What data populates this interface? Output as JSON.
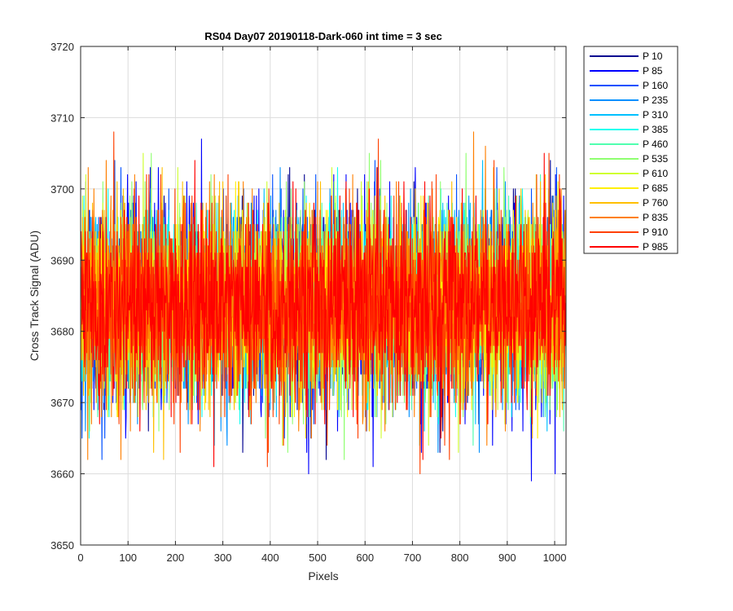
{
  "chart_data": {
    "type": "line",
    "title": "RS04 Day07 20190118-Dark-060 int time = 3 sec",
    "xlabel": "Pixels",
    "ylabel": "Cross Track Signal (ADU)",
    "xlim": [
      0,
      1024
    ],
    "ylim": [
      3650,
      3720
    ],
    "xticks": [
      0,
      100,
      200,
      300,
      400,
      500,
      600,
      700,
      800,
      900,
      1000
    ],
    "yticks": [
      3650,
      3660,
      3670,
      3680,
      3690,
      3700,
      3710,
      3720
    ],
    "grid": true,
    "legend_position": "outside-right",
    "n_points": 1024,
    "series": [
      {
        "name": "P 10",
        "color": "#00008f",
        "mean": 3684,
        "min": 3662,
        "max": 3706
      },
      {
        "name": "P 85",
        "color": "#0000ff",
        "mean": 3684,
        "min": 3659,
        "max": 3711
      },
      {
        "name": "P 160",
        "color": "#0050ff",
        "mean": 3684,
        "min": 3661,
        "max": 3706
      },
      {
        "name": "P 235",
        "color": "#0090ff",
        "mean": 3684,
        "min": 3663,
        "max": 3708
      },
      {
        "name": "P 310",
        "color": "#00c0ff",
        "mean": 3684,
        "min": 3664,
        "max": 3709
      },
      {
        "name": "P 385",
        "color": "#10ffef",
        "mean": 3684,
        "min": 3664,
        "max": 3709
      },
      {
        "name": "P 460",
        "color": "#50ffaf",
        "mean": 3684,
        "min": 3663,
        "max": 3706
      },
      {
        "name": "P 535",
        "color": "#8fff70",
        "mean": 3684,
        "min": 3659,
        "max": 3707
      },
      {
        "name": "P 610",
        "color": "#cfff30",
        "mean": 3684,
        "min": 3663,
        "max": 3711
      },
      {
        "name": "P 685",
        "color": "#ffef00",
        "mean": 3684,
        "min": 3664,
        "max": 3706
      },
      {
        "name": "P 760",
        "color": "#ffbf00",
        "mean": 3684,
        "min": 3661,
        "max": 3709
      },
      {
        "name": "P 835",
        "color": "#ff7f00",
        "mean": 3684,
        "min": 3662,
        "max": 3711
      },
      {
        "name": "P 910",
        "color": "#ff4000",
        "mean": 3684,
        "min": 3659,
        "max": 3708
      },
      {
        "name": "P 985",
        "color": "#ff0000",
        "mean": 3684,
        "min": 3661,
        "max": 3709
      }
    ]
  }
}
